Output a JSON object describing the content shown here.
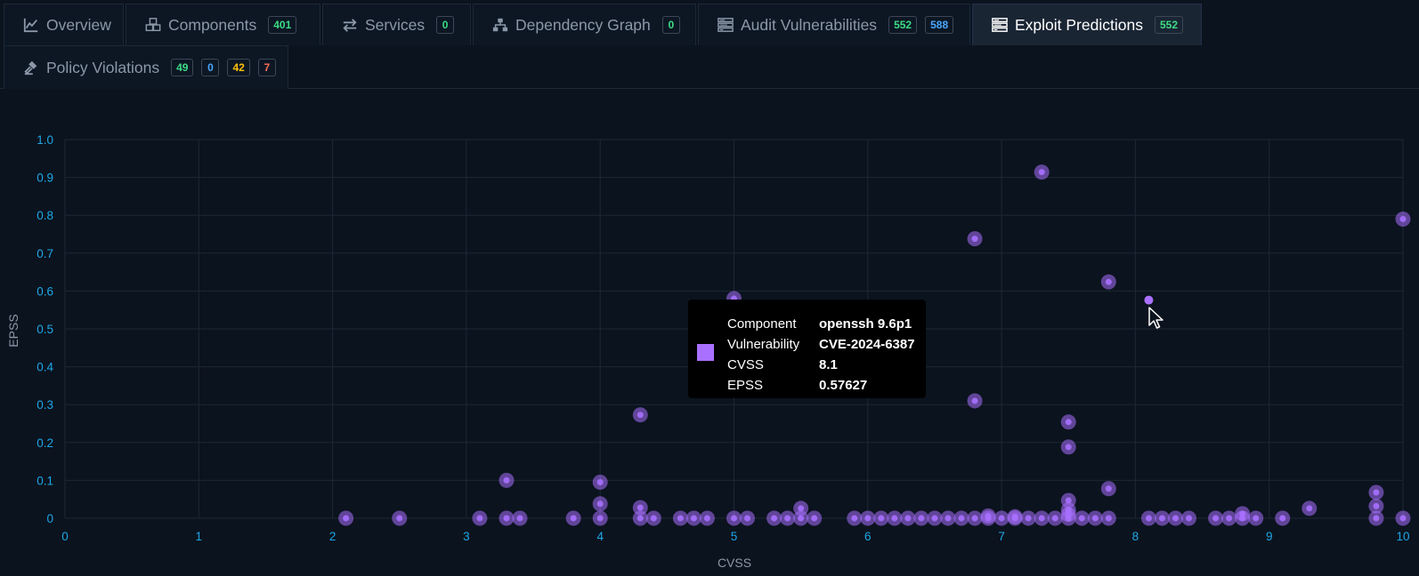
{
  "tabs": [
    {
      "label": "Overview",
      "icon": "line-chart-icon",
      "badges": []
    },
    {
      "label": "Components",
      "icon": "cubes-icon",
      "badges": [
        {
          "text": "401",
          "color": "#3ddc84"
        }
      ]
    },
    {
      "label": "Services",
      "icon": "exchange-icon",
      "badges": [
        {
          "text": "0",
          "color": "#3ddc84"
        }
      ]
    },
    {
      "label": "Dependency Graph",
      "icon": "sitemap-icon",
      "badges": [
        {
          "text": "0",
          "color": "#3ddc84"
        }
      ]
    },
    {
      "label": "Audit Vulnerabilities",
      "icon": "tasks-icon",
      "badges": [
        {
          "text": "552",
          "color": "#3ddc84"
        },
        {
          "text": "588",
          "color": "#4aa8ff"
        }
      ]
    },
    {
      "label": "Exploit Predictions",
      "icon": "tasks-icon",
      "active": true,
      "badges": [
        {
          "text": "552",
          "color": "#3ddc84"
        }
      ]
    },
    {
      "label": "Policy Violations",
      "icon": "gavel-icon",
      "badges": [
        {
          "text": "49",
          "color": "#3ddc84"
        },
        {
          "text": "0",
          "color": "#4aa8ff"
        },
        {
          "text": "42",
          "color": "#ffc107"
        },
        {
          "text": "7",
          "color": "#ff6b5a"
        }
      ]
    }
  ],
  "colors": {
    "point": "#a970ff",
    "tick": "#1ea7e8",
    "grid": "#1c2836"
  },
  "chart_data": {
    "type": "scatter",
    "xlabel": "CVSS",
    "ylabel": "EPSS",
    "xlim": [
      0,
      10
    ],
    "ylim": [
      0,
      1.0
    ],
    "xticks": [
      0,
      1,
      2,
      3,
      4,
      5,
      6,
      7,
      8,
      9,
      10
    ],
    "yticks": [
      0,
      0.1,
      0.2,
      0.3,
      0.4,
      0.5,
      0.6,
      0.7,
      0.8,
      0.9,
      1.0
    ],
    "grid": true,
    "points": [
      {
        "x": 7.3,
        "y": 0.914
      },
      {
        "x": 10.0,
        "y": 0.79
      },
      {
        "x": 6.8,
        "y": 0.738
      },
      {
        "x": 7.8,
        "y": 0.624
      },
      {
        "x": 5.0,
        "y": 0.58
      },
      {
        "x": 8.1,
        "y": 0.576,
        "hover": true
      },
      {
        "x": 6.8,
        "y": 0.31
      },
      {
        "x": 4.3,
        "y": 0.273
      },
      {
        "x": 7.5,
        "y": 0.254
      },
      {
        "x": 7.5,
        "y": 0.188
      },
      {
        "x": 3.3,
        "y": 0.1
      },
      {
        "x": 4.0,
        "y": 0.095
      },
      {
        "x": 7.8,
        "y": 0.078
      },
      {
        "x": 9.8,
        "y": 0.068
      },
      {
        "x": 7.5,
        "y": 0.047
      },
      {
        "x": 4.0,
        "y": 0.038
      },
      {
        "x": 9.8,
        "y": 0.032
      },
      {
        "x": 4.3,
        "y": 0.028
      },
      {
        "x": 5.5,
        "y": 0.026
      },
      {
        "x": 9.3,
        "y": 0.026
      },
      {
        "x": 7.5,
        "y": 0.022
      },
      {
        "x": 8.8,
        "y": 0.012
      },
      {
        "x": 7.5,
        "y": 0.01
      },
      {
        "x": 6.9,
        "y": 0.006
      },
      {
        "x": 7.1,
        "y": 0.004
      },
      {
        "x": 2.1,
        "y": 0.0
      },
      {
        "x": 2.5,
        "y": 0.0
      },
      {
        "x": 3.1,
        "y": 0.0
      },
      {
        "x": 3.3,
        "y": 0.0
      },
      {
        "x": 3.4,
        "y": 0.0
      },
      {
        "x": 3.8,
        "y": 0.0
      },
      {
        "x": 4.0,
        "y": 0.0
      },
      {
        "x": 4.3,
        "y": 0.0
      },
      {
        "x": 4.4,
        "y": 0.0
      },
      {
        "x": 4.6,
        "y": 0.0
      },
      {
        "x": 4.7,
        "y": 0.0
      },
      {
        "x": 4.8,
        "y": 0.0
      },
      {
        "x": 5.0,
        "y": 0.0
      },
      {
        "x": 5.1,
        "y": 0.0
      },
      {
        "x": 5.3,
        "y": 0.0
      },
      {
        "x": 5.4,
        "y": 0.0
      },
      {
        "x": 5.5,
        "y": 0.0
      },
      {
        "x": 5.6,
        "y": 0.0
      },
      {
        "x": 5.9,
        "y": 0.0
      },
      {
        "x": 6.0,
        "y": 0.0
      },
      {
        "x": 6.1,
        "y": 0.0
      },
      {
        "x": 6.2,
        "y": 0.0
      },
      {
        "x": 6.3,
        "y": 0.0
      },
      {
        "x": 6.4,
        "y": 0.0
      },
      {
        "x": 6.5,
        "y": 0.0
      },
      {
        "x": 6.6,
        "y": 0.0
      },
      {
        "x": 6.7,
        "y": 0.0
      },
      {
        "x": 6.8,
        "y": 0.0
      },
      {
        "x": 6.9,
        "y": 0.0
      },
      {
        "x": 7.0,
        "y": 0.0
      },
      {
        "x": 7.1,
        "y": 0.0
      },
      {
        "x": 7.2,
        "y": 0.0
      },
      {
        "x": 7.3,
        "y": 0.0
      },
      {
        "x": 7.4,
        "y": 0.0
      },
      {
        "x": 7.5,
        "y": 0.0
      },
      {
        "x": 7.6,
        "y": 0.0
      },
      {
        "x": 7.7,
        "y": 0.0
      },
      {
        "x": 7.8,
        "y": 0.0
      },
      {
        "x": 8.1,
        "y": 0.0
      },
      {
        "x": 8.2,
        "y": 0.0
      },
      {
        "x": 8.3,
        "y": 0.0
      },
      {
        "x": 8.4,
        "y": 0.0
      },
      {
        "x": 8.6,
        "y": 0.0
      },
      {
        "x": 8.7,
        "y": 0.0
      },
      {
        "x": 8.8,
        "y": 0.0
      },
      {
        "x": 8.9,
        "y": 0.0
      },
      {
        "x": 9.1,
        "y": 0.0
      },
      {
        "x": 9.8,
        "y": 0.0
      },
      {
        "x": 10.0,
        "y": 0.0
      }
    ]
  },
  "tooltip": {
    "rows": [
      {
        "key": "Component",
        "value": "openssh 9.6p1"
      },
      {
        "key": "Vulnerability",
        "value": "CVE-2024-6387"
      },
      {
        "key": "CVSS",
        "value": "8.1"
      },
      {
        "key": "EPSS",
        "value": "0.57627"
      }
    ]
  }
}
